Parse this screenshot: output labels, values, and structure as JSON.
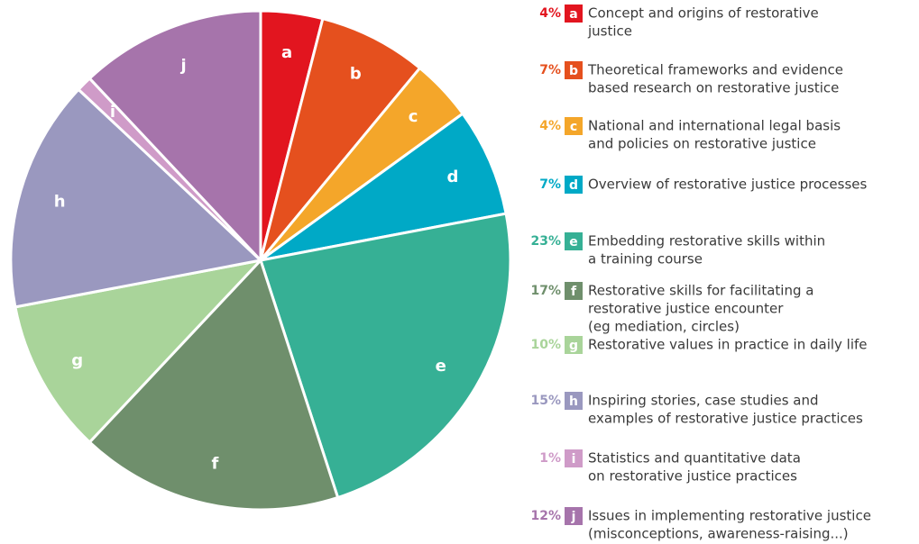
{
  "chart_data": {
    "type": "pie",
    "categories": [
      "a",
      "b",
      "c",
      "d",
      "e",
      "f",
      "g",
      "h",
      "i",
      "j"
    ],
    "values": [
      4,
      7,
      4,
      7,
      23,
      17,
      10,
      15,
      1,
      12
    ],
    "value_labels": [
      "4%",
      "7%",
      "4%",
      "7%",
      "23%",
      "17%",
      "10%",
      "15%",
      "1%",
      "12%"
    ],
    "colors": [
      "#e2151f",
      "#e5501e",
      "#f4a62a",
      "#00a9c6",
      "#36b095",
      "#6f8f6c",
      "#a9d49a",
      "#9a98bf",
      "#cf9bc8",
      "#a674ab"
    ],
    "descriptions": [
      [
        "Concept and origins of restorative",
        "justice"
      ],
      [
        "Theoretical frameworks and evidence",
        "based research on restorative justice"
      ],
      [
        "National and international legal basis",
        "and policies on restorative justice"
      ],
      [
        "Overview of restorative justice processes"
      ],
      [
        "Embedding restorative skills within",
        "a training course"
      ],
      [
        "Restorative skills for facilitating a",
        "restorative justice encounter",
        "(eg mediation, circles)"
      ],
      [
        "Restorative values in practice in daily life"
      ],
      [
        "Inspiring stories, case studies and",
        "examples of restorative justice practices"
      ],
      [
        "Statistics and quantitative data",
        "on restorative justice practices"
      ],
      [
        "Issues in implementing restorative justice",
        "(misconceptions, awareness-raising...)"
      ]
    ]
  }
}
